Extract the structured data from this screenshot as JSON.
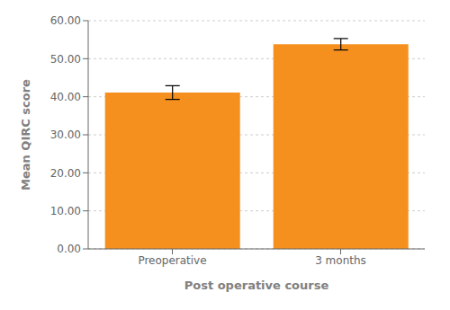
{
  "chart_data": {
    "type": "bar",
    "categories": [
      "Preoperative",
      "3 months"
    ],
    "values": [
      41.1,
      53.8
    ],
    "errors": [
      1.8,
      1.5
    ],
    "color": "#F5901E",
    "ylim": [
      0,
      60
    ],
    "yticks": [
      {
        "value": 0,
        "label": "0.00"
      },
      {
        "value": 10,
        "label": "10.00"
      },
      {
        "value": 20,
        "label": "20.00"
      },
      {
        "value": 30,
        "label": "30.00"
      },
      {
        "value": 40,
        "label": "40.00"
      },
      {
        "value": 50,
        "label": "50.00"
      },
      {
        "value": 60,
        "label": "60.00"
      }
    ],
    "xlabel": "Post operative course",
    "ylabel": "Mean QIRC score",
    "grid": true
  }
}
